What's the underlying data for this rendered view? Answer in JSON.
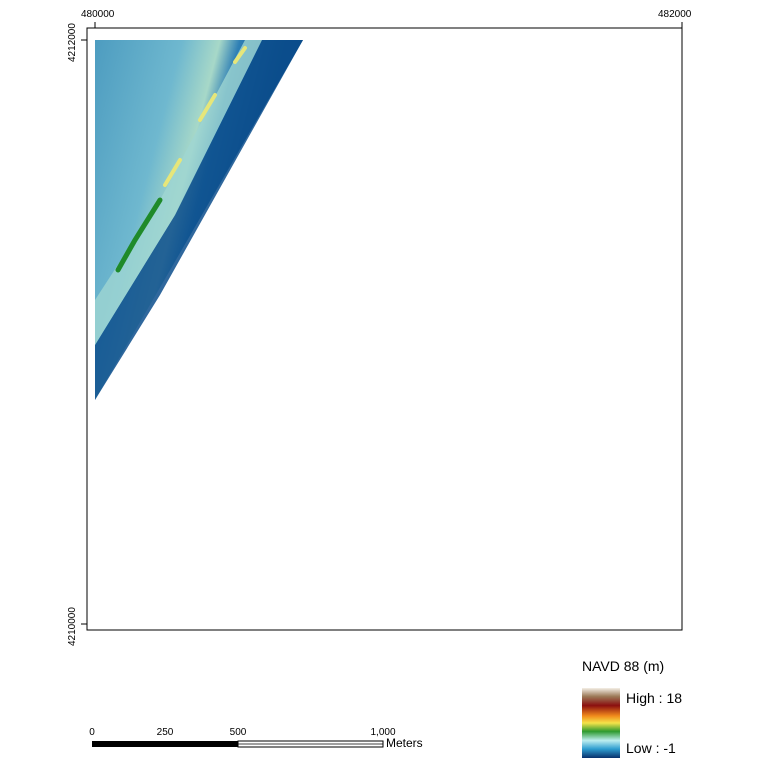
{
  "map": {
    "x_labels": [
      "480000",
      "482000"
    ],
    "y_labels": [
      "4212000",
      "4210000"
    ]
  },
  "legend": {
    "title": "NAVD 88 (m)",
    "high": "High : 18",
    "low": "Low : -1"
  },
  "scale_bar": {
    "labels": [
      "0",
      "250",
      "500",
      "1,000"
    ],
    "unit": "Meters"
  }
}
